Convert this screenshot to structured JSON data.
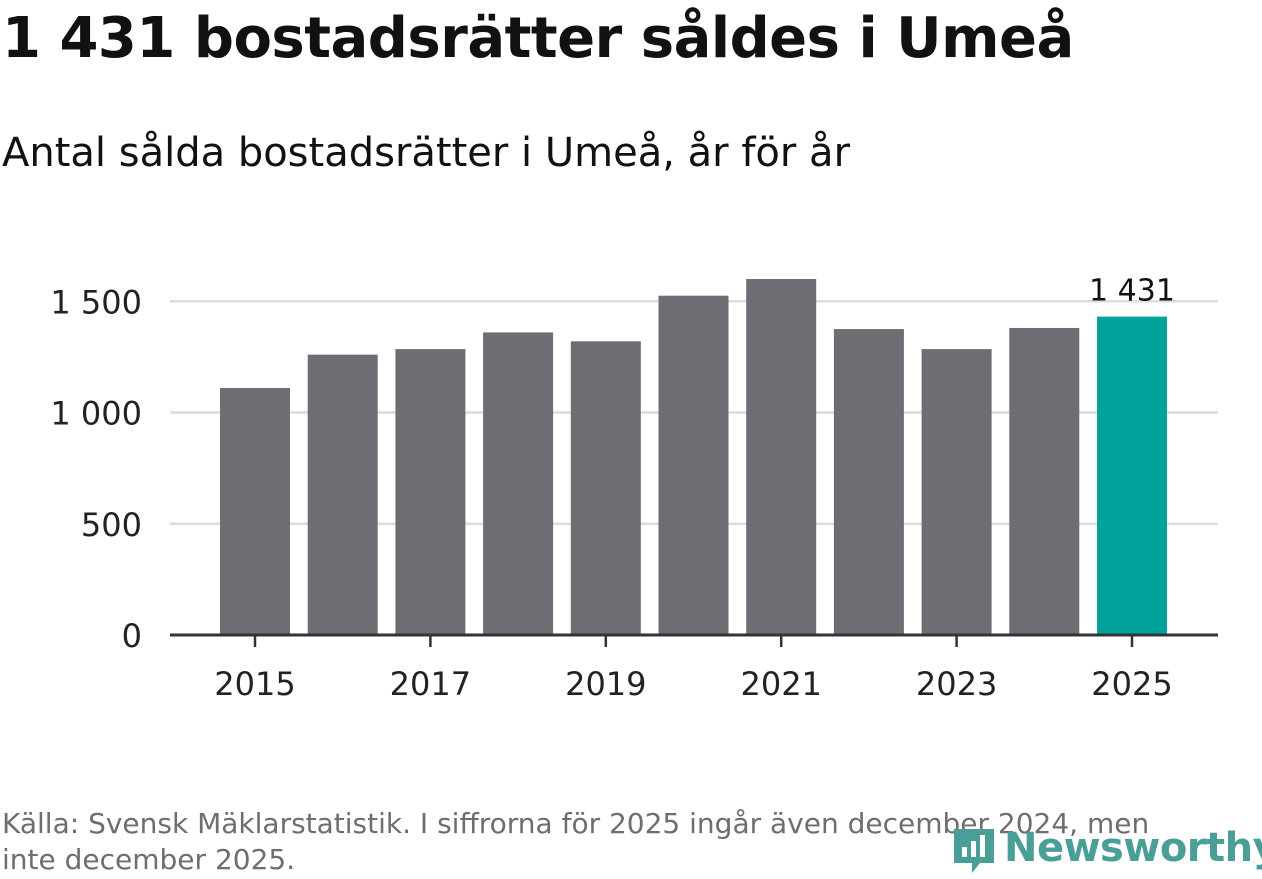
{
  "title": "1 431 bostadsrätter såldes i Umeå",
  "subtitle": "Antal sålda bostadsrätter i Umeå, år för år",
  "footnote": "Källa: Svensk Mäklarstatistik. I siffrorna för 2025 ingår även december 2024, men inte december 2025.",
  "logo": {
    "text": "Newsworthy",
    "icon": "newsworthy-logo-icon"
  },
  "colors": {
    "bar": "#6e6d74",
    "highlight": "#00a39b",
    "grid": "#dcdcdc",
    "axis": "#333333",
    "logo": "#4a9e98"
  },
  "chart_data": {
    "type": "bar",
    "categories": [
      "2015",
      "2016",
      "2017",
      "2018",
      "2019",
      "2020",
      "2021",
      "2022",
      "2023",
      "2024",
      "2025"
    ],
    "values": [
      1110,
      1260,
      1285,
      1360,
      1320,
      1525,
      1600,
      1375,
      1285,
      1380,
      1431
    ],
    "highlight_index": 10,
    "data_labels": [
      {
        "index": 10,
        "text": "1 431"
      }
    ],
    "ylim": [
      0,
      1650
    ],
    "y_ticks": [
      0,
      500,
      1000,
      1500
    ],
    "y_tick_labels": [
      "0",
      "500",
      "1 000",
      "1 500"
    ],
    "x_tick_labels": [
      "2015",
      "2017",
      "2019",
      "2021",
      "2023",
      "2025"
    ],
    "xlabel": "",
    "ylabel": "",
    "grid": true
  }
}
